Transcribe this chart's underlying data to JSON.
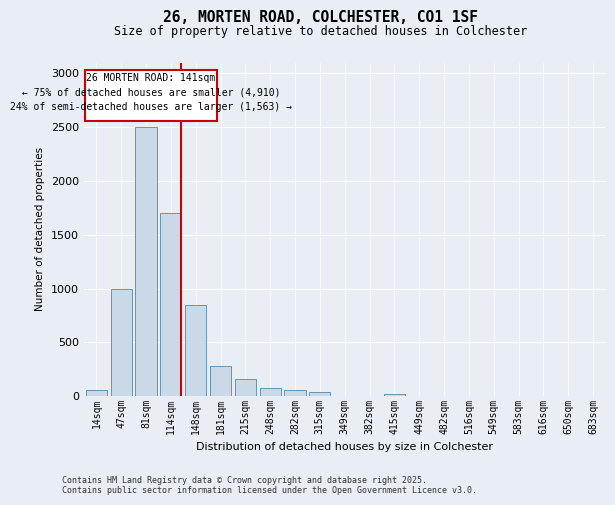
{
  "title_line1": "26, MORTEN ROAD, COLCHESTER, CO1 1SF",
  "title_line2": "Size of property relative to detached houses in Colchester",
  "xlabel": "Distribution of detached houses by size in Colchester",
  "ylabel": "Number of detached properties",
  "footnote_line1": "Contains HM Land Registry data © Crown copyright and database right 2025.",
  "footnote_line2": "Contains public sector information licensed under the Open Government Licence v3.0.",
  "annotation_line1": "26 MORTEN ROAD: 141sqm",
  "annotation_line2": "← 75% of detached houses are smaller (4,910)",
  "annotation_line3": "24% of semi-detached houses are larger (1,563) →",
  "property_size_idx": 3,
  "bar_color": "#c9d9e8",
  "bar_edge_color": "#5588aa",
  "vline_color": "#cc0000",
  "annotation_box_color": "#cc0000",
  "background_color": "#e8eef4",
  "categories": [
    "14sqm",
    "47sqm",
    "81sqm",
    "114sqm",
    "148sqm",
    "181sqm",
    "215sqm",
    "248sqm",
    "282sqm",
    "315sqm",
    "349sqm",
    "382sqm",
    "415sqm",
    "449sqm",
    "482sqm",
    "516sqm",
    "549sqm",
    "583sqm",
    "616sqm",
    "650sqm",
    "683sqm"
  ],
  "values": [
    60,
    1000,
    2500,
    1700,
    850,
    280,
    155,
    75,
    55,
    35,
    0,
    0,
    20,
    0,
    0,
    0,
    0,
    0,
    0,
    0,
    0
  ],
  "ylim": [
    0,
    3100
  ],
  "yticks": [
    0,
    500,
    1000,
    1500,
    2000,
    2500,
    3000
  ],
  "n_bars": 21,
  "vline_bar_idx": 3
}
